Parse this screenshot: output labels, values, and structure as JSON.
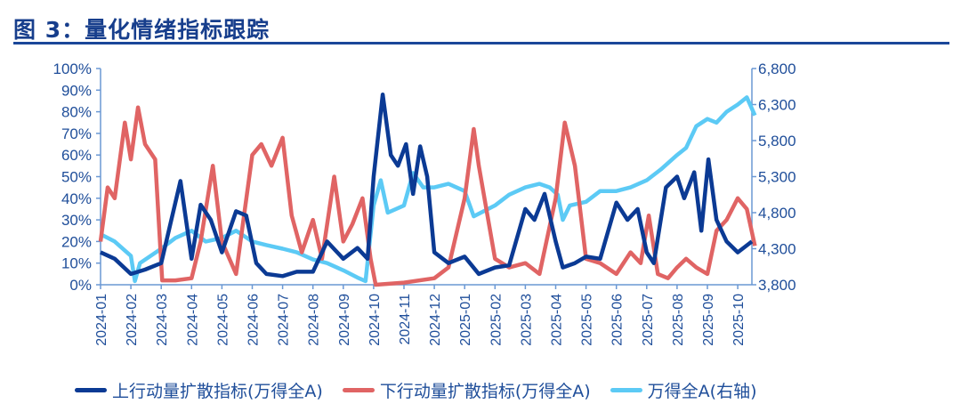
{
  "title": "图 3：量化情绪指标跟踪",
  "chart_data": {
    "type": "line",
    "title": "图 3：量化情绪指标跟踪",
    "x_ticks": [
      "2024-01",
      "2024-02",
      "2024-03",
      "2024-04",
      "2024-05",
      "2024-06",
      "2024-07",
      "2024-08",
      "2024-09",
      "2024-10",
      "2024-11",
      "2024-12",
      "2025-01",
      "2025-02",
      "2025-03",
      "2025-04",
      "2025-05",
      "2025-06",
      "2025-07",
      "2025-08",
      "2025-09",
      "2025-10"
    ],
    "y_left": {
      "range": [
        0,
        100
      ],
      "unit": "%",
      "ticks": [
        "0%",
        "10%",
        "20%",
        "30%",
        "40%",
        "50%",
        "60%",
        "70%",
        "80%",
        "90%",
        "100%"
      ]
    },
    "y_right": {
      "range": [
        3800,
        6800
      ],
      "ticks": [
        "3,800",
        "4,300",
        "4,800",
        "5,300",
        "5,800",
        "6,300",
        "6,800"
      ]
    },
    "grid": false,
    "legend_position": "bottom",
    "series": [
      {
        "name": "上行动量扩散指标(万得全A)",
        "axis": "left",
        "color": "#0b3a94",
        "points": [
          [
            "2024-01-01",
            15
          ],
          [
            "2024-01-15",
            12
          ],
          [
            "2024-02-01",
            5
          ],
          [
            "2024-02-15",
            7
          ],
          [
            "2024-03-01",
            10
          ],
          [
            "2024-03-10",
            28
          ],
          [
            "2024-03-20",
            48
          ],
          [
            "2024-04-01",
            12
          ],
          [
            "2024-04-10",
            37
          ],
          [
            "2024-04-20",
            30
          ],
          [
            "2024-05-01",
            15
          ],
          [
            "2024-05-15",
            34
          ],
          [
            "2024-05-25",
            32
          ],
          [
            "2024-06-05",
            10
          ],
          [
            "2024-06-15",
            5
          ],
          [
            "2024-07-01",
            4
          ],
          [
            "2024-07-15",
            6
          ],
          [
            "2024-08-01",
            6
          ],
          [
            "2024-08-15",
            20
          ],
          [
            "2024-09-01",
            12
          ],
          [
            "2024-09-15",
            17
          ],
          [
            "2024-09-25",
            12
          ],
          [
            "2024-10-01",
            50
          ],
          [
            "2024-10-10",
            88
          ],
          [
            "2024-10-18",
            60
          ],
          [
            "2024-10-25",
            55
          ],
          [
            "2024-11-03",
            65
          ],
          [
            "2024-11-10",
            42
          ],
          [
            "2024-11-17",
            64
          ],
          [
            "2024-11-24",
            50
          ],
          [
            "2024-12-01",
            15
          ],
          [
            "2024-12-15",
            10
          ],
          [
            "2025-01-01",
            13
          ],
          [
            "2025-01-15",
            5
          ],
          [
            "2025-02-01",
            8
          ],
          [
            "2025-02-15",
            9
          ],
          [
            "2025-03-01",
            35
          ],
          [
            "2025-03-10",
            30
          ],
          [
            "2025-03-20",
            42
          ],
          [
            "2025-04-01",
            20
          ],
          [
            "2025-04-08",
            8
          ],
          [
            "2025-04-20",
            10
          ],
          [
            "2025-05-01",
            13
          ],
          [
            "2025-05-15",
            12
          ],
          [
            "2025-06-01",
            38
          ],
          [
            "2025-06-12",
            30
          ],
          [
            "2025-06-22",
            35
          ],
          [
            "2025-07-01",
            15
          ],
          [
            "2025-07-08",
            10
          ],
          [
            "2025-07-20",
            45
          ],
          [
            "2025-08-01",
            50
          ],
          [
            "2025-08-08",
            40
          ],
          [
            "2025-08-18",
            52
          ],
          [
            "2025-08-25",
            25
          ],
          [
            "2025-09-02",
            58
          ],
          [
            "2025-09-10",
            30
          ],
          [
            "2025-09-20",
            20
          ],
          [
            "2025-10-01",
            15
          ],
          [
            "2025-10-15",
            20
          ]
        ]
      },
      {
        "name": "下行动量扩散指标(万得全A)",
        "axis": "left",
        "color": "#e06464",
        "points": [
          [
            "2024-01-01",
            20
          ],
          [
            "2024-01-08",
            45
          ],
          [
            "2024-01-15",
            40
          ],
          [
            "2024-01-25",
            75
          ],
          [
            "2024-02-01",
            58
          ],
          [
            "2024-02-08",
            82
          ],
          [
            "2024-02-15",
            65
          ],
          [
            "2024-02-25",
            58
          ],
          [
            "2024-03-02",
            2
          ],
          [
            "2024-03-15",
            2
          ],
          [
            "2024-04-01",
            3
          ],
          [
            "2024-04-10",
            20
          ],
          [
            "2024-04-22",
            55
          ],
          [
            "2024-05-01",
            20
          ],
          [
            "2024-05-15",
            5
          ],
          [
            "2024-06-01",
            60
          ],
          [
            "2024-06-10",
            65
          ],
          [
            "2024-06-20",
            55
          ],
          [
            "2024-07-01",
            68
          ],
          [
            "2024-07-10",
            32
          ],
          [
            "2024-07-20",
            15
          ],
          [
            "2024-08-01",
            30
          ],
          [
            "2024-08-10",
            12
          ],
          [
            "2024-08-22",
            50
          ],
          [
            "2024-09-01",
            20
          ],
          [
            "2024-09-10",
            28
          ],
          [
            "2024-09-20",
            40
          ],
          [
            "2024-09-28",
            12
          ],
          [
            "2024-10-03",
            0
          ],
          [
            "2024-11-01",
            1
          ],
          [
            "2024-12-01",
            3
          ],
          [
            "2024-12-15",
            8
          ],
          [
            "2025-01-01",
            40
          ],
          [
            "2025-01-10",
            72
          ],
          [
            "2025-01-15",
            55
          ],
          [
            "2025-02-01",
            12
          ],
          [
            "2025-02-15",
            8
          ],
          [
            "2025-03-01",
            10
          ],
          [
            "2025-03-15",
            5
          ],
          [
            "2025-04-01",
            40
          ],
          [
            "2025-04-10",
            75
          ],
          [
            "2025-04-20",
            55
          ],
          [
            "2025-05-01",
            12
          ],
          [
            "2025-05-15",
            10
          ],
          [
            "2025-06-01",
            5
          ],
          [
            "2025-06-15",
            15
          ],
          [
            "2025-06-25",
            10
          ],
          [
            "2025-07-03",
            32
          ],
          [
            "2025-07-12",
            5
          ],
          [
            "2025-07-22",
            3
          ],
          [
            "2025-08-01",
            8
          ],
          [
            "2025-08-10",
            12
          ],
          [
            "2025-08-20",
            8
          ],
          [
            "2025-09-01",
            5
          ],
          [
            "2025-09-10",
            25
          ],
          [
            "2025-09-20",
            30
          ],
          [
            "2025-10-01",
            40
          ],
          [
            "2025-10-10",
            35
          ],
          [
            "2025-10-18",
            18
          ]
        ]
      },
      {
        "name": "万得全A(右轴)",
        "axis": "right",
        "color": "#5ccaf5",
        "points": [
          [
            "2024-01-01",
            4500
          ],
          [
            "2024-01-15",
            4400
          ],
          [
            "2024-02-01",
            4200
          ],
          [
            "2024-02-05",
            3850
          ],
          [
            "2024-02-10",
            4100
          ],
          [
            "2024-03-01",
            4300
          ],
          [
            "2024-03-15",
            4450
          ],
          [
            "2024-04-01",
            4550
          ],
          [
            "2024-04-15",
            4400
          ],
          [
            "2024-05-01",
            4450
          ],
          [
            "2024-05-15",
            4550
          ],
          [
            "2024-06-01",
            4400
          ],
          [
            "2024-06-15",
            4350
          ],
          [
            "2024-07-01",
            4300
          ],
          [
            "2024-07-15",
            4250
          ],
          [
            "2024-08-01",
            4150
          ],
          [
            "2024-08-15",
            4100
          ],
          [
            "2024-09-01",
            4000
          ],
          [
            "2024-09-15",
            3900
          ],
          [
            "2024-09-23",
            3850
          ],
          [
            "2024-10-01",
            4900
          ],
          [
            "2024-10-08",
            5250
          ],
          [
            "2024-10-15",
            4800
          ],
          [
            "2024-11-01",
            4900
          ],
          [
            "2024-11-10",
            5350
          ],
          [
            "2024-11-20",
            5150
          ],
          [
            "2024-12-01",
            5150
          ],
          [
            "2024-12-15",
            5200
          ],
          [
            "2025-01-01",
            5100
          ],
          [
            "2025-01-10",
            4750
          ],
          [
            "2025-02-01",
            4900
          ],
          [
            "2025-02-15",
            5050
          ],
          [
            "2025-03-01",
            5150
          ],
          [
            "2025-03-15",
            5200
          ],
          [
            "2025-03-25",
            5150
          ],
          [
            "2025-04-03",
            5050
          ],
          [
            "2025-04-08",
            4700
          ],
          [
            "2025-04-15",
            4900
          ],
          [
            "2025-05-01",
            4950
          ],
          [
            "2025-05-15",
            5100
          ],
          [
            "2025-06-01",
            5100
          ],
          [
            "2025-06-15",
            5150
          ],
          [
            "2025-07-01",
            5250
          ],
          [
            "2025-07-15",
            5400
          ],
          [
            "2025-08-01",
            5600
          ],
          [
            "2025-08-10",
            5700
          ],
          [
            "2025-08-20",
            6000
          ],
          [
            "2025-09-01",
            6100
          ],
          [
            "2025-09-10",
            6050
          ],
          [
            "2025-09-20",
            6200
          ],
          [
            "2025-10-01",
            6300
          ],
          [
            "2025-10-10",
            6400
          ],
          [
            "2025-10-18",
            6150
          ]
        ]
      }
    ]
  }
}
